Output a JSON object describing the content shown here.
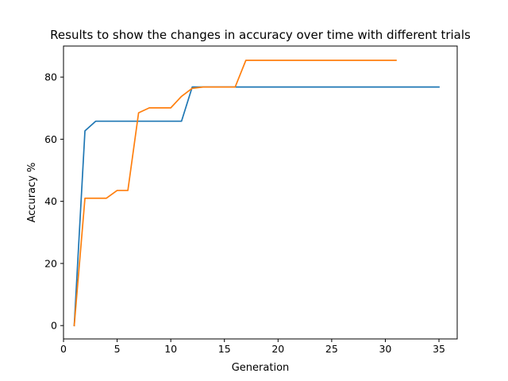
{
  "chart_data": {
    "type": "line",
    "title": "Results to show the changes in accuracy over time with different trials",
    "xlabel": "Generation",
    "ylabel": "Accuracy %",
    "xlim": [
      0.0,
      36.7
    ],
    "ylim": [
      -4.3,
      90.0
    ],
    "xticks": [
      0,
      5,
      10,
      15,
      20,
      25,
      30,
      35
    ],
    "yticks": [
      0,
      20,
      40,
      60,
      80
    ],
    "grid": false,
    "legend": "none",
    "series": [
      {
        "color": "#1f77b4",
        "x": [
          1,
          2,
          3,
          4,
          5,
          6,
          7,
          8,
          9,
          10,
          11,
          12,
          13,
          14,
          15,
          16,
          17,
          18,
          19,
          20,
          21,
          22,
          23,
          24,
          25,
          26,
          27,
          28,
          29,
          30,
          31,
          32,
          33,
          34,
          35
        ],
        "y": [
          0,
          62.7,
          65.8,
          65.8,
          65.8,
          65.8,
          65.8,
          65.8,
          65.8,
          65.8,
          65.8,
          76.8,
          76.8,
          76.8,
          76.8,
          76.8,
          76.8,
          76.8,
          76.8,
          76.8,
          76.8,
          76.8,
          76.8,
          76.8,
          76.8,
          76.8,
          76.8,
          76.8,
          76.8,
          76.8,
          76.8,
          76.8,
          76.8,
          76.8,
          76.8
        ]
      },
      {
        "color": "#ff7f0e",
        "x": [
          1,
          2,
          3,
          4,
          5,
          6,
          7,
          8,
          9,
          10,
          11,
          12,
          13,
          14,
          15,
          16,
          17,
          18,
          19,
          20,
          21,
          22,
          23,
          24,
          25,
          26,
          27,
          28,
          29,
          30,
          31
        ],
        "y": [
          0,
          41,
          41,
          41,
          43.5,
          43.5,
          68.5,
          70.1,
          70.1,
          70.1,
          73.8,
          76.4,
          76.8,
          76.8,
          76.8,
          76.8,
          85.4,
          85.4,
          85.4,
          85.4,
          85.4,
          85.4,
          85.4,
          85.4,
          85.4,
          85.4,
          85.4,
          85.4,
          85.4,
          85.4,
          85.4
        ]
      }
    ]
  }
}
